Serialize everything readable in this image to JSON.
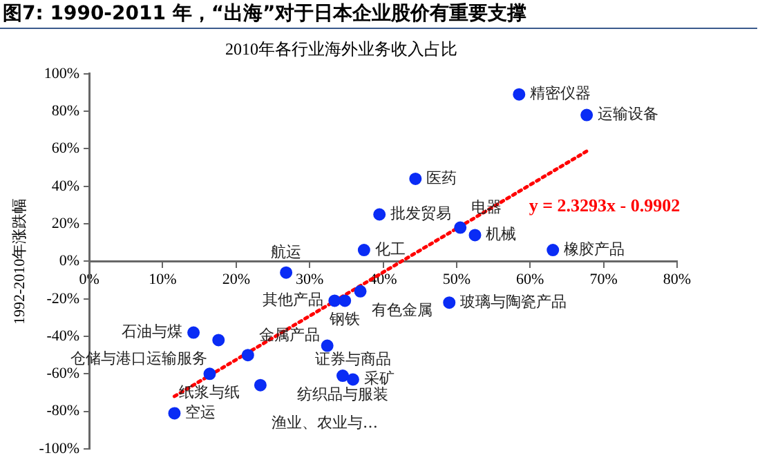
{
  "chart_data": {
    "type": "scatter",
    "title": "图7: 1990-2011 年，“出海”对于日本企业股价有重要支撑",
    "subtitle": "2010年各行业海外业务收入占比",
    "ylabel": "1992-2010年涨跌幅",
    "series": [
      {
        "color": "#0a2cf5",
        "x": [
          58.5,
          67.7,
          44.4,
          39.5,
          50.5,
          52.5,
          63.1,
          37.4,
          26.8,
          36.9,
          34.8,
          33.4,
          32.4,
          49,
          17.6,
          14.2,
          21.6,
          16.4,
          23.3,
          11.6,
          34.5,
          35.9
        ],
        "values": [
          89,
          78,
          44,
          25,
          18,
          14,
          6,
          6,
          -6,
          -16,
          -21,
          -21,
          -45,
          -22,
          -42,
          -38,
          -50,
          -60,
          -66,
          -81,
          -61,
          -63
        ]
      },
      {
        "type": "line",
        "name": "y = 2.3293x - 0.9902",
        "color": "#ff0000",
        "line_style": "dotted",
        "marker": "none",
        "x": [
          11.6,
          67.7
        ],
        "values": [
          -72,
          58.7
        ]
      }
    ],
    "xlim": [
      0,
      80
    ],
    "xticks": [
      {
        "value": 0,
        "label": "0%"
      },
      {
        "value": 10,
        "label": "10%"
      },
      {
        "value": 20,
        "label": "20%"
      },
      {
        "value": 30,
        "label": "30%"
      },
      {
        "value": 40,
        "label": "40%"
      },
      {
        "value": 50,
        "label": "50%"
      },
      {
        "value": 60,
        "label": "60%"
      },
      {
        "value": 70,
        "label": "70%"
      },
      {
        "value": 80,
        "label": "80%"
      }
    ],
    "ylim": [
      -100,
      100
    ],
    "yticks": [
      {
        "value": -100,
        "label": "-100%"
      },
      {
        "value": -80,
        "label": "-80%"
      },
      {
        "value": -60,
        "label": "-60%"
      },
      {
        "value": -40,
        "label": "-40%"
      },
      {
        "value": -20,
        "label": "-20%"
      },
      {
        "value": 0,
        "label": "0%"
      },
      {
        "value": 20,
        "label": "20%"
      },
      {
        "value": 40,
        "label": "40%"
      },
      {
        "value": 60,
        "label": "60%"
      },
      {
        "value": 80,
        "label": "80%"
      },
      {
        "value": 100,
        "label": "100%"
      }
    ],
    "grid": false,
    "legend": false,
    "marker": "circle",
    "annotations": [
      {
        "text": "精密仪器",
        "x": 58.5,
        "y": 89
      },
      {
        "text": "运输设备",
        "x": 67.7,
        "y": 78
      },
      {
        "text": "医药",
        "x": 44.4,
        "y": 44
      },
      {
        "text": "批发贸易",
        "x": 39.5,
        "y": 25
      },
      {
        "text": "电器",
        "x": 50.5,
        "y": 18
      },
      {
        "text": "机械",
        "x": 52.5,
        "y": 14
      },
      {
        "text": "橡胶产品",
        "x": 63.1,
        "y": 6
      },
      {
        "text": "化工",
        "x": 37.4,
        "y": 6
      },
      {
        "text": "航运",
        "x": 26.8,
        "y": -6
      },
      {
        "text": "有色金属",
        "x": 36.9,
        "y": -16
      },
      {
        "text": "钢铁",
        "x": 34.8,
        "y": -21
      },
      {
        "text": "玻璃与陶瓷产品",
        "x": 49,
        "y": -22
      },
      {
        "text": "仓储与港口运输服务",
        "x": 17.6,
        "y": -42
      },
      {
        "text": "其他产品",
        "x": 33.4,
        "y": -21
      },
      {
        "text": "石油与煤",
        "x": 14.2,
        "y": -38
      },
      {
        "text": "纺织品与服装",
        "x": 34.5,
        "y": -61
      },
      {
        "text": "采矿",
        "x": 35.9,
        "y": -63
      },
      {
        "text": "证券与商品",
        "x": 35.9,
        "y": -63
      },
      {
        "text": "金属产品",
        "x": 21.6,
        "y": -50
      },
      {
        "text": "纸浆与纸",
        "x": 16.4,
        "y": -60
      },
      {
        "text": "渔业、农业与…",
        "x": 23.3,
        "y": -66
      },
      {
        "text": "空运",
        "x": 11.6,
        "y": -81
      }
    ]
  }
}
